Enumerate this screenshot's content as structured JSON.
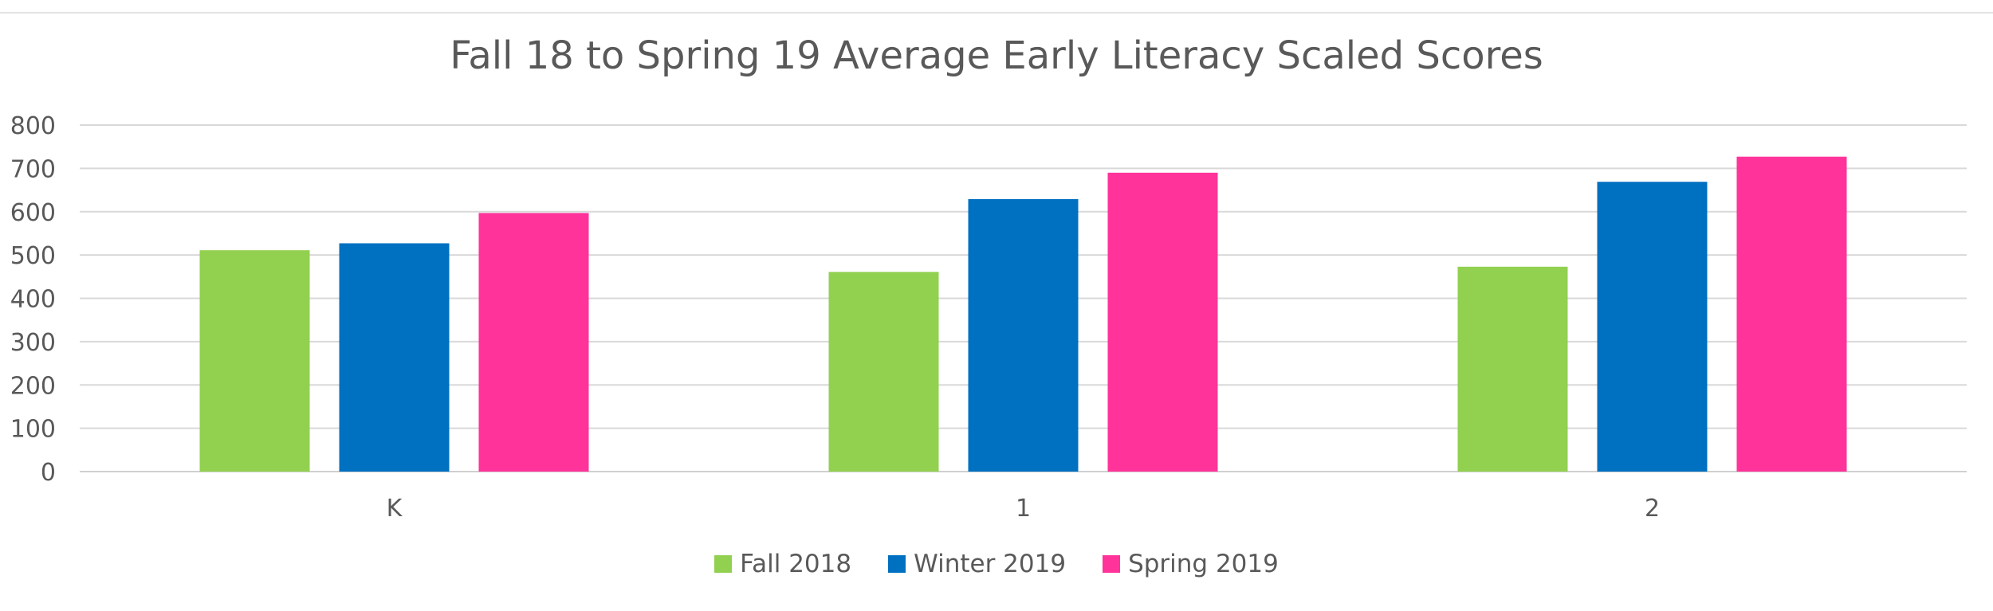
{
  "chart_data": {
    "type": "bar",
    "title": "Fall 18 to Spring 19 Average Early Literacy Scaled Scores",
    "categories": [
      "K",
      "1",
      "2"
    ],
    "series": [
      {
        "name": "Fall 2018",
        "color": "#92d050",
        "values": [
          511,
          461,
          473
        ]
      },
      {
        "name": "Winter 2019",
        "color": "#0070c0",
        "values": [
          527,
          629,
          669
        ]
      },
      {
        "name": "Spring 2019",
        "color": "#ff3399",
        "values": [
          597,
          690,
          727
        ]
      }
    ],
    "ylim": [
      0,
      800
    ],
    "yticks": [
      0,
      100,
      200,
      300,
      400,
      500,
      600,
      700,
      800
    ],
    "grid": true,
    "legend_position": "bottom"
  }
}
